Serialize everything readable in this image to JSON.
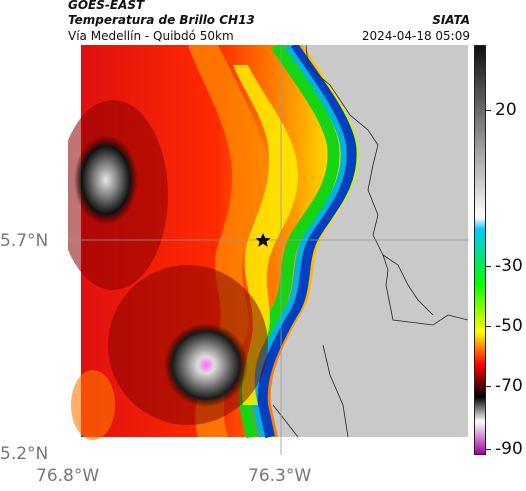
{
  "header": {
    "satellite": "GOES-EAST",
    "product": "Temperatura de Brillo CH13",
    "route": "Vía Medellín - Quibdó 50km",
    "brand": "SIATA",
    "datetime": "2024-04-18 05:09"
  },
  "map": {
    "lat_labels": [
      "5.7°N",
      "5.2°N"
    ],
    "lon_labels": [
      "76.8°W",
      "76.3°W"
    ],
    "marker_icon": "star-icon"
  },
  "colorbar": {
    "ticks": [
      "20",
      "-30",
      "-50",
      "-70",
      "-90"
    ],
    "stops": [
      "#101010",
      "#ffffff",
      "#00c8ff",
      "#00ff00",
      "#ffff00",
      "#ff0000",
      "#000000",
      "#ffffff",
      "#a000a0"
    ]
  }
}
